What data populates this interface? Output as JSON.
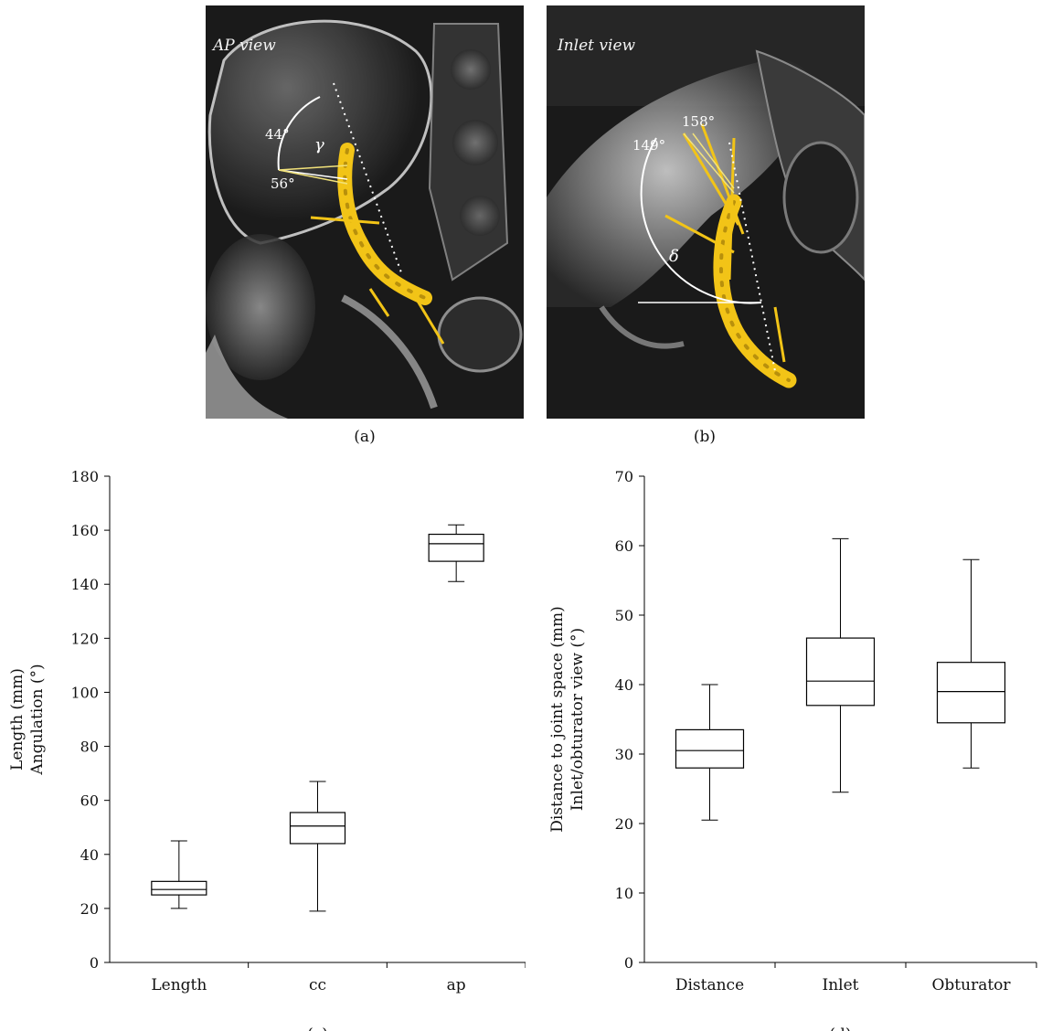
{
  "panel_a": {
    "title": "AP view",
    "angle_top": "44°",
    "angle_bottom": "56°",
    "angle_symbol": "γ",
    "caption": "(a)"
  },
  "panel_b": {
    "title": "Inlet view",
    "angle_top": "158°",
    "angle_left": "149°",
    "angle_symbol": "δ",
    "caption": "(b)"
  },
  "colors": {
    "implant": "#f2c417",
    "annotation": "#ffffff",
    "xray_background": "#1a1a1a",
    "axis": "#000000"
  },
  "chart_data": [
    {
      "type": "box",
      "caption": "(c)",
      "title": "",
      "xlabel": "",
      "ylabel_lines": [
        "Length (mm)",
        "Angulation (°)"
      ],
      "ylim": [
        0,
        180
      ],
      "yticks": [
        0,
        20,
        40,
        60,
        80,
        100,
        120,
        140,
        160,
        180
      ],
      "categories": [
        "Length",
        "cc",
        "ap"
      ],
      "boxes": [
        {
          "min": 20,
          "q1": 25,
          "median": 27,
          "q3": 30,
          "max": 45
        },
        {
          "min": 19,
          "q1": 44,
          "median": 50.5,
          "q3": 55.5,
          "max": 67
        },
        {
          "min": 141,
          "q1": 148.5,
          "median": 155,
          "q3": 158.5,
          "max": 162
        }
      ]
    },
    {
      "type": "box",
      "caption": "(d)",
      "title": "",
      "xlabel": "",
      "ylabel_lines": [
        "Distance to joint space (mm)",
        "Inlet/obturator view (°)"
      ],
      "ylim": [
        0,
        70
      ],
      "yticks": [
        0,
        10,
        20,
        30,
        40,
        50,
        60,
        70
      ],
      "categories": [
        "Distance",
        "Inlet",
        "Obturator"
      ],
      "boxes": [
        {
          "min": 20.5,
          "q1": 28,
          "median": 30.5,
          "q3": 33.5,
          "max": 40
        },
        {
          "min": 24.5,
          "q1": 37,
          "median": 40.5,
          "q3": 46.7,
          "max": 61
        },
        {
          "min": 28,
          "q1": 34.5,
          "median": 39,
          "q3": 43.2,
          "max": 58
        }
      ]
    }
  ]
}
